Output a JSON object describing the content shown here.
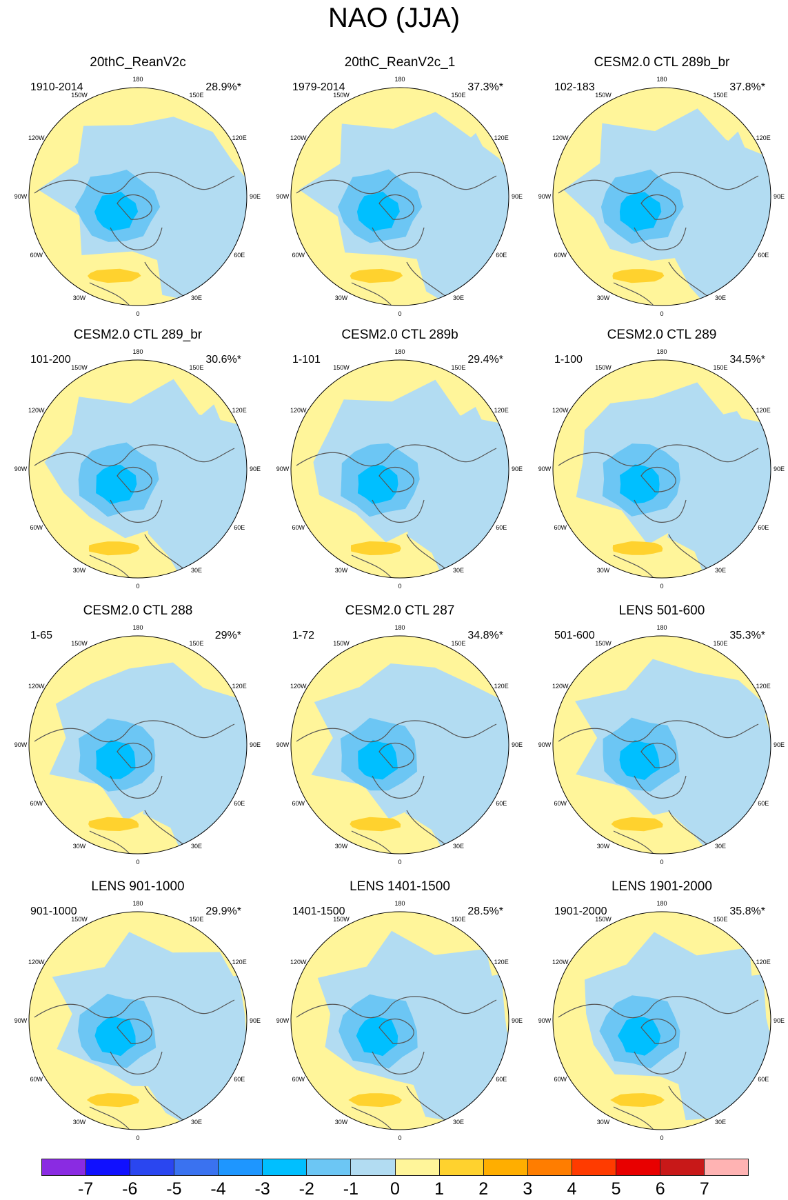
{
  "title": "NAO (JJA)",
  "lon_labels": [
    "180",
    "150E",
    "120E",
    "90E",
    "60E",
    "30E",
    "0",
    "30W",
    "60W",
    "90W",
    "120W",
    "150W"
  ],
  "panels": [
    {
      "name": "20thC_ReanV2c",
      "period": "1910-2014",
      "pct": "28.9%*"
    },
    {
      "name": "20thC_ReanV2c_1",
      "period": "1979-2014",
      "pct": "37.3%*"
    },
    {
      "name": "CESM2.0 CTL 289b_br",
      "period": "102-183",
      "pct": "37.8%*"
    },
    {
      "name": "CESM2.0 CTL 289_br",
      "period": "101-200",
      "pct": "30.6%*"
    },
    {
      "name": "CESM2.0 CTL 289b",
      "period": "1-101",
      "pct": "29.4%*"
    },
    {
      "name": "CESM2.0 CTL 289",
      "period": "1-100",
      "pct": "34.5%*"
    },
    {
      "name": "CESM2.0 CTL 288",
      "period": "1-65",
      "pct": "29%*"
    },
    {
      "name": "CESM2.0 CTL 287",
      "period": "1-72",
      "pct": "34.8%*"
    },
    {
      "name": "LENS 501-600",
      "period": "501-600",
      "pct": "35.3%*"
    },
    {
      "name": "LENS 901-1000",
      "period": "901-1000",
      "pct": "29.9%*"
    },
    {
      "name": "LENS 1401-1500",
      "period": "1401-1500",
      "pct": "28.5%*"
    },
    {
      "name": "LENS 1901-2000",
      "period": "1901-2000",
      "pct": "35.8%*"
    }
  ],
  "colorbar": {
    "colors": [
      "#8a2be2",
      "#1010ff",
      "#2a46f0",
      "#3a72f0",
      "#1e96ff",
      "#00bfff",
      "#6cc6f4",
      "#b2dcf2",
      "#fff59a",
      "#ffd22e",
      "#ffae00",
      "#ff7d00",
      "#ff3b00",
      "#e80000",
      "#c81818",
      "#ffb3b3"
    ],
    "labels": [
      "-7",
      "-6",
      "-5",
      "-4",
      "-3",
      "-2",
      "-1",
      "0",
      "1",
      "2",
      "3",
      "4",
      "5",
      "6",
      "7"
    ]
  },
  "palette": {
    "positive": "#fff59a",
    "negative_light": "#b2dcf2",
    "negative_mid": "#6cc6f4",
    "negative_strong": "#00bfff",
    "positive_strong": "#ffd22e",
    "coast": "#555555"
  }
}
